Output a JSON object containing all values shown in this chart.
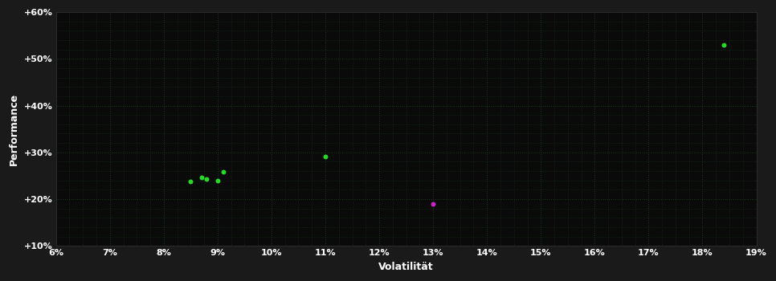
{
  "xlabel": "Volatilität",
  "ylabel": "Performance",
  "background_color": "#1a1a1a",
  "plot_bg_color": "#0a0a0a",
  "grid_color": "#1e3a1e",
  "text_color": "#ffffff",
  "axis_label_color": "#ffffff",
  "xlim": [
    0.06,
    0.19
  ],
  "ylim": [
    0.1,
    0.6
  ],
  "xticks": [
    0.06,
    0.07,
    0.08,
    0.09,
    0.1,
    0.11,
    0.12,
    0.13,
    0.14,
    0.15,
    0.16,
    0.17,
    0.18,
    0.19
  ],
  "yticks": [
    0.1,
    0.2,
    0.3,
    0.4,
    0.5,
    0.6
  ],
  "ytick_labels": [
    "+10%",
    "+20%",
    "+30%",
    "+40%",
    "+50%",
    "+60%"
  ],
  "xtick_labels": [
    "6%",
    "7%",
    "8%",
    "9%",
    "10%",
    "11%",
    "12%",
    "13%",
    "14%",
    "15%",
    "16%",
    "17%",
    "18%",
    "19%"
  ],
  "green_points": [
    [
      0.085,
      0.238
    ],
    [
      0.087,
      0.246
    ],
    [
      0.088,
      0.243
    ],
    [
      0.09,
      0.24
    ],
    [
      0.091,
      0.258
    ],
    [
      0.11,
      0.291
    ],
    [
      0.184,
      0.53
    ]
  ],
  "magenta_points": [
    [
      0.13,
      0.19
    ]
  ],
  "green_color": "#22dd22",
  "magenta_color": "#cc22cc",
  "marker_size": 18
}
